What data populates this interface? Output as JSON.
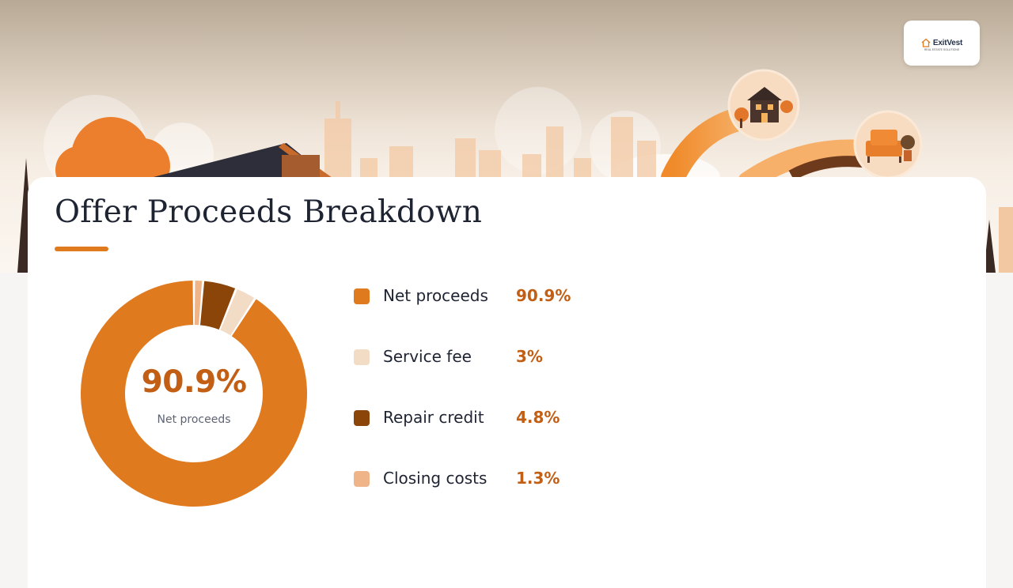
{
  "brand": {
    "name": "ExitVest",
    "tagline": "REAL ESTATE SOLUTIONS"
  },
  "hero": {
    "illustration": "city-skyline-with-houses",
    "icons": [
      "house-bubble-icon",
      "armchair-bubble-icon"
    ]
  },
  "title": "Offer Proceeds Breakdown",
  "donut_center": {
    "value": "90.9%",
    "label": "Net proceeds"
  },
  "legend": [
    {
      "label": "Net proceeds",
      "value": "90.9%",
      "color": "#e07a1f"
    },
    {
      "label": "Service fee",
      "value": "3%",
      "color": "#f3dcc6"
    },
    {
      "label": "Repair credit",
      "value": "4.8%",
      "color": "#8b4509"
    },
    {
      "label": "Closing costs",
      "value": "1.3%",
      "color": "#efb589"
    }
  ],
  "chart_data": {
    "type": "pie",
    "variant": "donut",
    "title": "Offer Proceeds Breakdown",
    "categories": [
      "Net proceeds",
      "Service fee",
      "Repair credit",
      "Closing costs"
    ],
    "values": [
      90.9,
      3,
      4.8,
      1.3
    ],
    "unit": "%",
    "colors": [
      "#e07a1f",
      "#f3dcc6",
      "#8b4509",
      "#efb589"
    ],
    "legend_position": "right"
  },
  "colors": {
    "accent": "#e07a1f",
    "accent_text": "#c25f14",
    "title": "#1f2433"
  }
}
